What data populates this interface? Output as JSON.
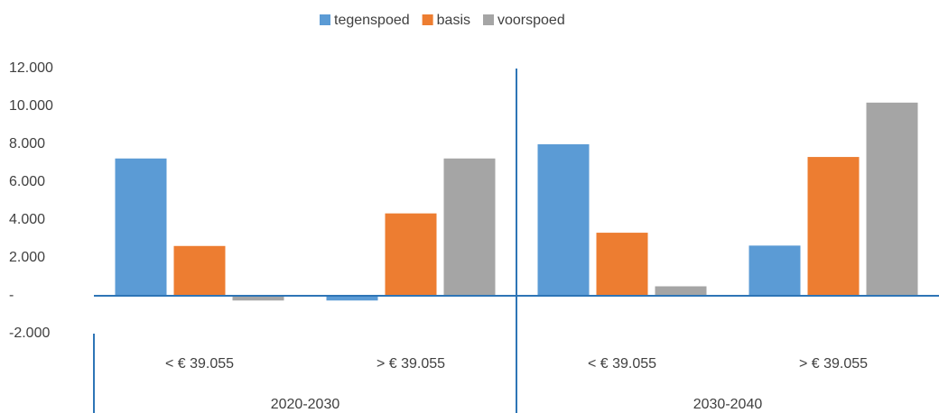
{
  "chart_data": {
    "type": "bar",
    "categories": [
      "< € 39.055",
      "> € 39.055",
      "< € 39.055",
      "> € 39.055"
    ],
    "groups": [
      "2020-2030",
      "2030-2040"
    ],
    "series": [
      {
        "name": "tegenspoed",
        "color": "#5b9bd5",
        "values": [
          7250,
          -250,
          8000,
          2650
        ]
      },
      {
        "name": "basis",
        "color": "#ed7d31",
        "values": [
          2630,
          4350,
          3330,
          7330
        ]
      },
      {
        "name": "voorspoed",
        "color": "#a5a5a5",
        "values": [
          -250,
          7250,
          500,
          10200
        ]
      }
    ],
    "ylim": [
      -2000,
      12000
    ],
    "yticks": [
      {
        "value": -2000,
        "label": "-2.000"
      },
      {
        "value": 0,
        "label": "-"
      },
      {
        "value": 2000,
        "label": "2.000"
      },
      {
        "value": 4000,
        "label": "4.000"
      },
      {
        "value": 6000,
        "label": "6.000"
      },
      {
        "value": 8000,
        "label": "8.000"
      },
      {
        "value": 10000,
        "label": "10.000"
      },
      {
        "value": 12000,
        "label": "12.000"
      }
    ],
    "legend": "top",
    "grid": false
  }
}
